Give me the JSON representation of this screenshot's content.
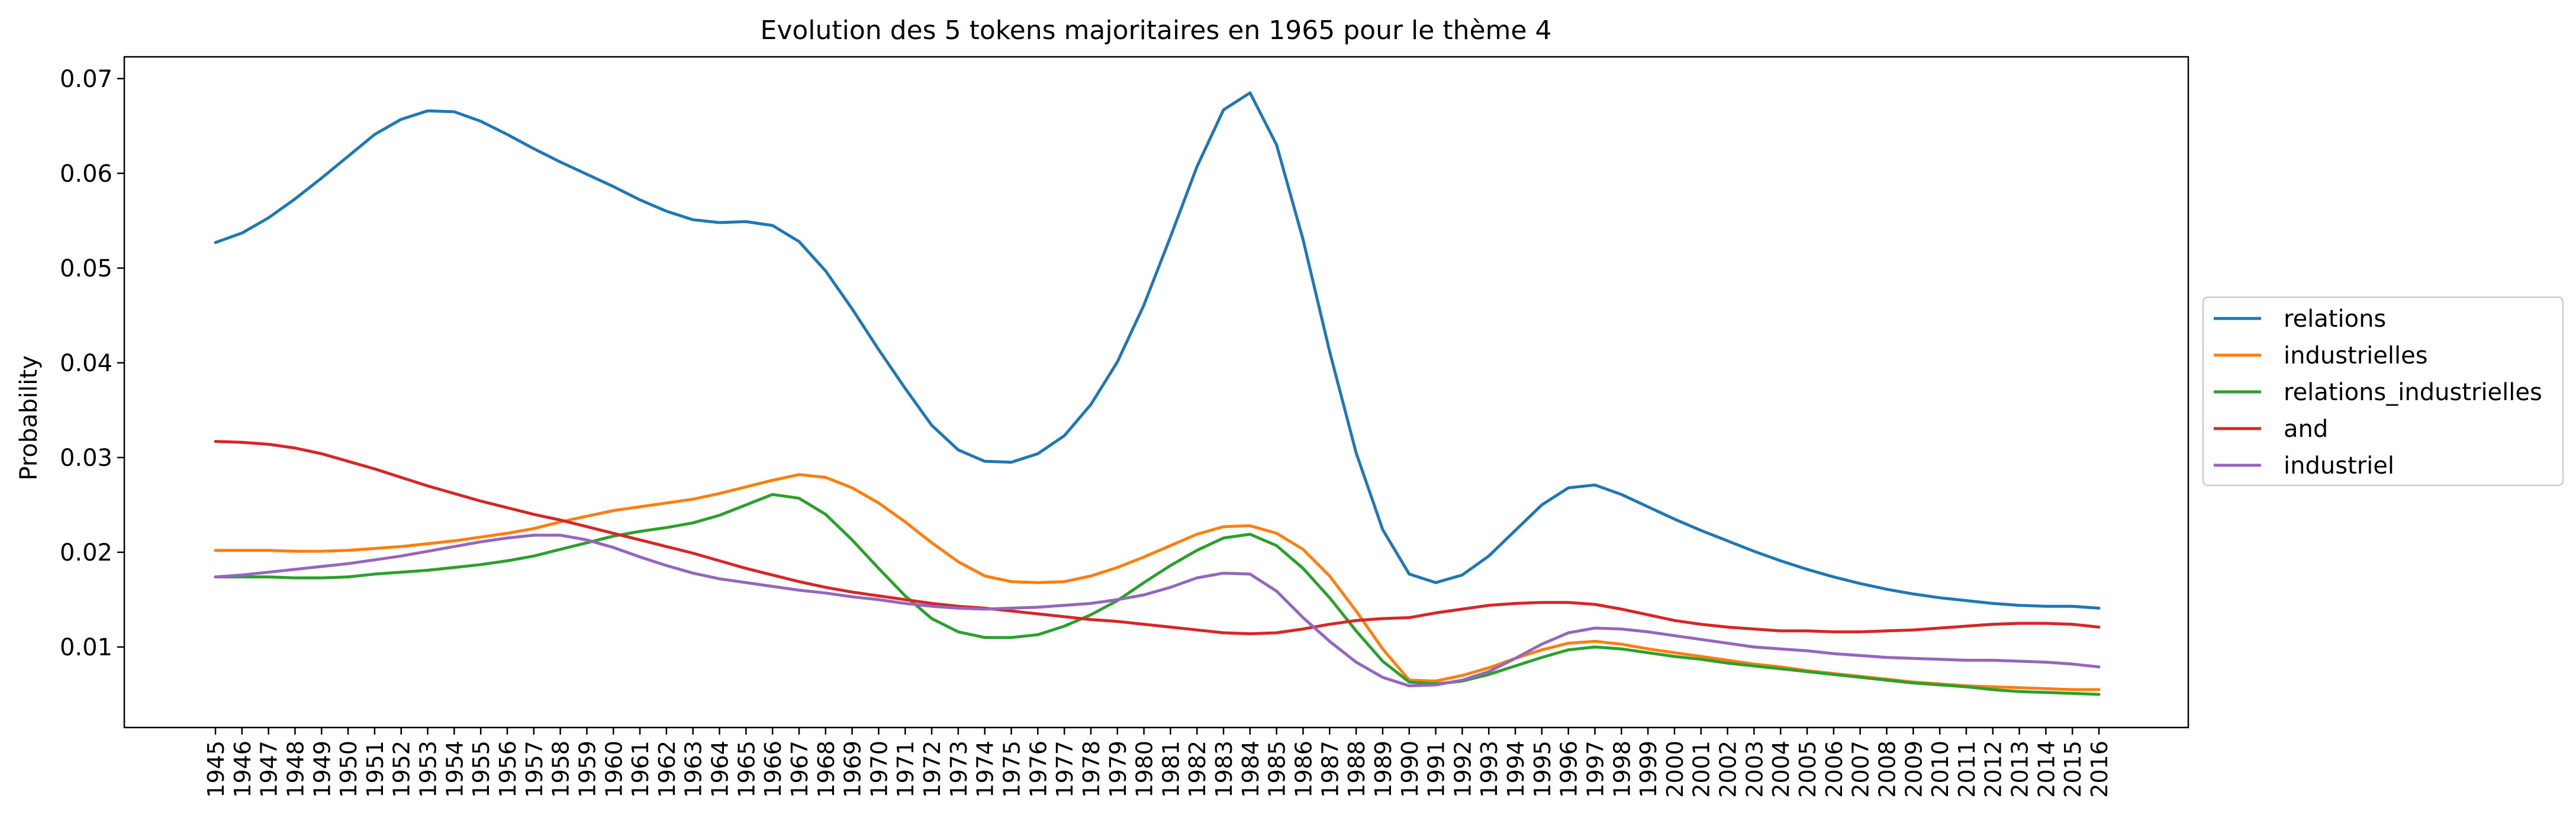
{
  "chart_data": {
    "type": "line",
    "title": "Evolution des 5 tokens majoritaires en 1965 pour le thème 4",
    "xlabel": "",
    "ylabel": "Probability",
    "ylim": [
      0.0015,
      0.0723
    ],
    "yticks": [
      "0.01",
      "0.02",
      "0.03",
      "0.04",
      "0.05",
      "0.06",
      "0.07"
    ],
    "grid": false,
    "legend_position": "center-right outside",
    "x": [
      "1945",
      "1946",
      "1947",
      "1948",
      "1949",
      "1950",
      "1951",
      "1952",
      "1953",
      "1954",
      "1955",
      "1956",
      "1957",
      "1958",
      "1959",
      "1960",
      "1961",
      "1962",
      "1963",
      "1964",
      "1965",
      "1966",
      "1967",
      "1968",
      "1969",
      "1970",
      "1971",
      "1972",
      "1973",
      "1974",
      "1975",
      "1976",
      "1977",
      "1978",
      "1979",
      "1980",
      "1981",
      "1982",
      "1983",
      "1984",
      "1985",
      "1986",
      "1987",
      "1988",
      "1989",
      "1990",
      "1991",
      "1992",
      "1993",
      "1994",
      "1995",
      "1996",
      "1997",
      "1998",
      "1999",
      "2000",
      "2001",
      "2002",
      "2003",
      "2004",
      "2005",
      "2006",
      "2007",
      "2008",
      "2009",
      "2010",
      "2011",
      "2012",
      "2013",
      "2014",
      "2015",
      "2016"
    ],
    "series": [
      {
        "name": "relations",
        "color": "#1f77b4",
        "values": [
          0.0527,
          0.0537,
          0.0553,
          0.0573,
          0.0595,
          0.0618,
          0.0641,
          0.0657,
          0.0666,
          0.0665,
          0.0655,
          0.0641,
          0.0626,
          0.0612,
          0.0599,
          0.0586,
          0.0572,
          0.056,
          0.0551,
          0.0548,
          0.0549,
          0.0545,
          0.0528,
          0.0497,
          0.0457,
          0.0414,
          0.0373,
          0.0334,
          0.0308,
          0.0296,
          0.0295,
          0.0304,
          0.0323,
          0.0356,
          0.0401,
          0.0461,
          0.0533,
          0.0607,
          0.0667,
          0.0685,
          0.063,
          0.053,
          0.0412,
          0.0305,
          0.0224,
          0.0177,
          0.0168,
          0.0176,
          0.0196,
          0.0223,
          0.025,
          0.0268,
          0.0271,
          0.0261,
          0.0248,
          0.0235,
          0.0223,
          0.0212,
          0.0201,
          0.0191,
          0.0182,
          0.0174,
          0.0167,
          0.0161,
          0.0156,
          0.0152,
          0.0149,
          0.0146,
          0.0144,
          0.0143,
          0.0143,
          0.0141
        ]
      },
      {
        "name": "industrielles",
        "color": "#ff7f0e",
        "values": [
          0.0202,
          0.0202,
          0.0202,
          0.0201,
          0.0201,
          0.0202,
          0.0204,
          0.0206,
          0.0209,
          0.0212,
          0.0216,
          0.022,
          0.0225,
          0.0232,
          0.0238,
          0.0244,
          0.0248,
          0.0252,
          0.0256,
          0.0262,
          0.0269,
          0.0276,
          0.0282,
          0.0279,
          0.0268,
          0.0252,
          0.0232,
          0.021,
          0.019,
          0.0175,
          0.0169,
          0.0168,
          0.0169,
          0.0175,
          0.0184,
          0.0195,
          0.0207,
          0.0219,
          0.0227,
          0.0228,
          0.022,
          0.0203,
          0.0175,
          0.0138,
          0.0098,
          0.0065,
          0.0064,
          0.007,
          0.0078,
          0.0088,
          0.0097,
          0.0104,
          0.0106,
          0.0103,
          0.0098,
          0.0094,
          0.009,
          0.0086,
          0.0082,
          0.0079,
          0.0075,
          0.0072,
          0.0069,
          0.0066,
          0.0063,
          0.0061,
          0.0059,
          0.0058,
          0.0057,
          0.0056,
          0.0055,
          0.0055
        ]
      },
      {
        "name": "relations_industrielles",
        "color": "#2ca02c",
        "values": [
          0.0174,
          0.0174,
          0.0174,
          0.0173,
          0.0173,
          0.0174,
          0.0177,
          0.0179,
          0.0181,
          0.0184,
          0.0187,
          0.0191,
          0.0196,
          0.0203,
          0.021,
          0.0217,
          0.0222,
          0.0226,
          0.0231,
          0.0239,
          0.025,
          0.0261,
          0.0257,
          0.024,
          0.0213,
          0.0183,
          0.0154,
          0.013,
          0.0116,
          0.011,
          0.011,
          0.0113,
          0.0122,
          0.0134,
          0.0149,
          0.0168,
          0.0186,
          0.0202,
          0.0215,
          0.0219,
          0.0207,
          0.0183,
          0.0152,
          0.0117,
          0.0085,
          0.0063,
          0.0061,
          0.0064,
          0.0071,
          0.008,
          0.0089,
          0.0097,
          0.01,
          0.0098,
          0.0094,
          0.009,
          0.0087,
          0.0083,
          0.008,
          0.0077,
          0.0074,
          0.0071,
          0.0068,
          0.0065,
          0.0062,
          0.006,
          0.0058,
          0.0055,
          0.0053,
          0.0052,
          0.0051,
          0.005
        ]
      },
      {
        "name": "and",
        "color": "#d62728",
        "values": [
          0.0317,
          0.0316,
          0.0314,
          0.031,
          0.0304,
          0.0296,
          0.0288,
          0.0279,
          0.027,
          0.0262,
          0.0254,
          0.0247,
          0.024,
          0.0234,
          0.0227,
          0.022,
          0.0213,
          0.0206,
          0.0199,
          0.0191,
          0.0183,
          0.0176,
          0.0169,
          0.0163,
          0.0158,
          0.0154,
          0.015,
          0.0146,
          0.0143,
          0.0141,
          0.0138,
          0.0135,
          0.0132,
          0.0129,
          0.0127,
          0.0124,
          0.0121,
          0.0118,
          0.0115,
          0.0114,
          0.0115,
          0.0119,
          0.0124,
          0.0128,
          0.013,
          0.0131,
          0.0136,
          0.014,
          0.0144,
          0.0146,
          0.0147,
          0.0147,
          0.0145,
          0.014,
          0.0134,
          0.0128,
          0.0124,
          0.0121,
          0.0119,
          0.0117,
          0.0117,
          0.0116,
          0.0116,
          0.0117,
          0.0118,
          0.012,
          0.0122,
          0.0124,
          0.0125,
          0.0125,
          0.0124,
          0.0121
        ]
      },
      {
        "name": "industriel",
        "color": "#9467bd",
        "values": [
          0.0174,
          0.0176,
          0.0179,
          0.0182,
          0.0185,
          0.0188,
          0.0192,
          0.0196,
          0.0201,
          0.0206,
          0.0211,
          0.0215,
          0.0218,
          0.0218,
          0.0213,
          0.0205,
          0.0195,
          0.0186,
          0.0178,
          0.0172,
          0.0168,
          0.0164,
          0.016,
          0.0157,
          0.0153,
          0.015,
          0.0146,
          0.0143,
          0.0141,
          0.014,
          0.0141,
          0.0142,
          0.0144,
          0.0146,
          0.015,
          0.0155,
          0.0163,
          0.0173,
          0.0178,
          0.0177,
          0.0159,
          0.0131,
          0.0106,
          0.0084,
          0.0068,
          0.0059,
          0.006,
          0.0065,
          0.0074,
          0.0088,
          0.0103,
          0.0115,
          0.012,
          0.0119,
          0.0116,
          0.0112,
          0.0108,
          0.0104,
          0.01,
          0.0098,
          0.0096,
          0.0093,
          0.0091,
          0.0089,
          0.0088,
          0.0087,
          0.0086,
          0.0086,
          0.0085,
          0.0084,
          0.0082,
          0.0079
        ]
      }
    ]
  }
}
